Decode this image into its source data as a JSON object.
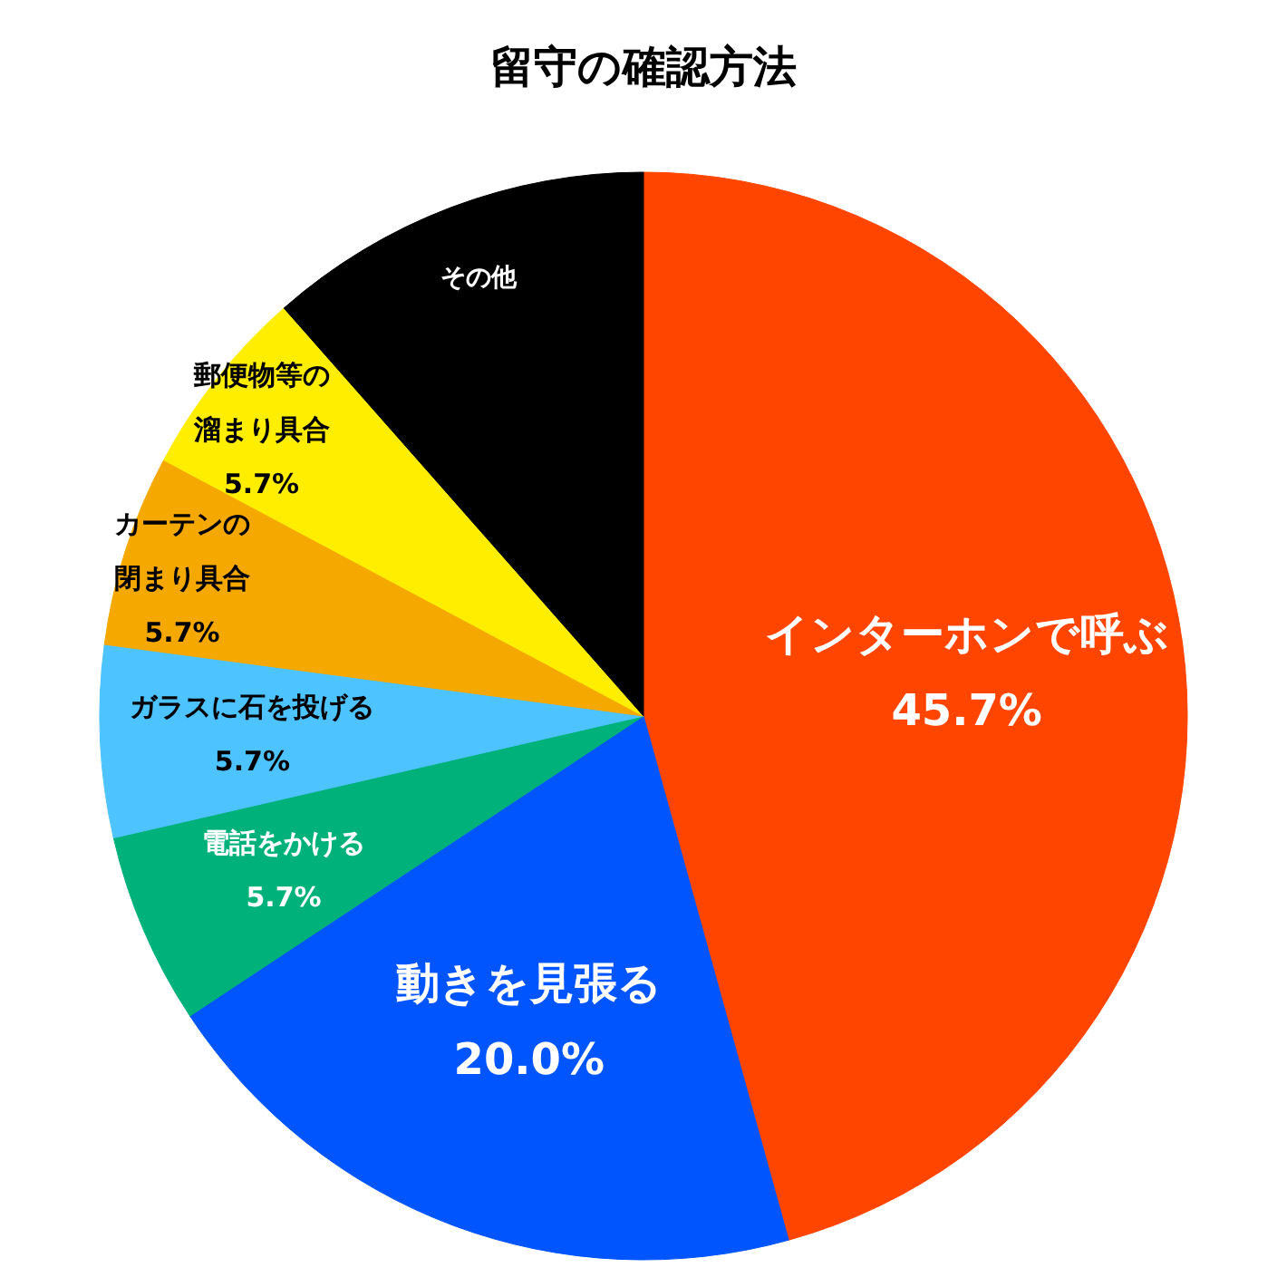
{
  "chart_data": {
    "type": "pie",
    "title": "留守の確認方法",
    "categories": [
      "インターホンで呼ぶ",
      "動きを見張る",
      "電話をかける",
      "ガラスに石を投げる",
      "カーテンの閉まり具合",
      "郵便物等の溜まり具合",
      "その他"
    ],
    "values": [
      45.7,
      20.0,
      5.7,
      5.7,
      5.7,
      5.7,
      11.5
    ],
    "value_labels": [
      "45.7%",
      "20.0%",
      "5.7%",
      "5.7%",
      "5.7%",
      "5.7%",
      null
    ],
    "colors": [
      "#ff4500",
      "#0055ff",
      "#00b27a",
      "#4dc3ff",
      "#f5a800",
      "#ffee00",
      "#000000"
    ],
    "legend": false
  }
}
